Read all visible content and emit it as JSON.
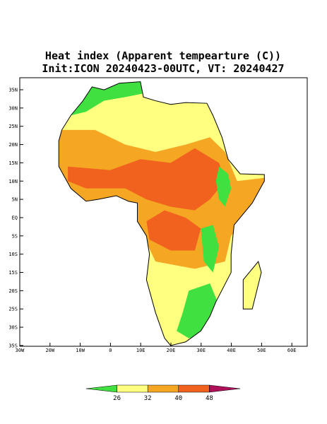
{
  "title": "Heat index (Apparent tempearture (C))",
  "subtitle": "Init:ICON 20240423-00UTC, VT: 20240427",
  "lat_labels": [
    "35N",
    "30N",
    "25N",
    "20N",
    "15N",
    "10N",
    "5N",
    "EQ",
    "5S",
    "10S",
    "15S",
    "20S",
    "25S",
    "30S",
    "35S"
  ],
  "lon_labels": [
    "30W",
    "20W",
    "10W",
    "0",
    "10E",
    "20E",
    "30E",
    "40E",
    "50E",
    "60E"
  ],
  "colorbar": {
    "levels": [
      26,
      32,
      40,
      48
    ],
    "colors": [
      "#40e040",
      "#ffff80",
      "#f5a623",
      "#f0621e",
      "#b0105a"
    ]
  }
}
